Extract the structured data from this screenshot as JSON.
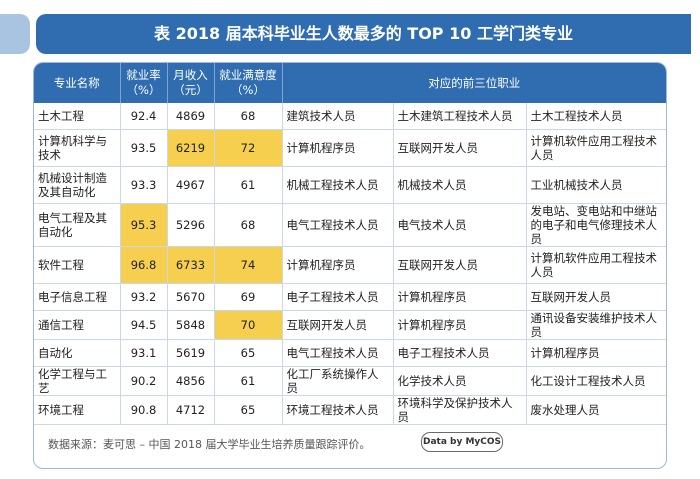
{
  "title": "表 2018 届本科毕业生人数最多的 TOP 10 工学门类专业",
  "headers": {
    "major": "专业名称",
    "employment_rate": [
      "就业率",
      "（%）"
    ],
    "monthly_income": [
      "月收入",
      "（元）"
    ],
    "satisfaction": [
      "就业满意度",
      "（%）"
    ],
    "top_jobs": "对应的前三位职业"
  },
  "rows": [
    {
      "major": "土木工程",
      "rate": "92.4",
      "income": "4869",
      "sat": "68",
      "jobs": [
        "建筑技术人员",
        "土木建筑工程技术人员",
        "土木工程技术人员"
      ]
    },
    {
      "major": "计算机科学与技术",
      "rate": "93.5",
      "income": "6219",
      "sat": "72",
      "jobs": [
        "计算机程序员",
        "互联网开发人员",
        "计算机软件应用工程技术人员"
      ]
    },
    {
      "major": "机械设计制造及其自动化",
      "rate": "93.3",
      "income": "4967",
      "sat": "61",
      "jobs": [
        "机械工程技术人员",
        "机械技术人员",
        "工业机械技术人员"
      ]
    },
    {
      "major": "电气工程及其自动化",
      "rate": "95.3",
      "income": "5296",
      "sat": "68",
      "jobs": [
        "电气工程技术人员",
        "电气技术人员",
        "发电站、变电站和中继站的电子和电气修理技术人员"
      ]
    },
    {
      "major": "软件工程",
      "rate": "96.8",
      "income": "6733",
      "sat": "74",
      "jobs": [
        "计算机程序员",
        "互联网开发人员",
        "计算机软件应用工程技术人员"
      ]
    },
    {
      "major": "电子信息工程",
      "rate": "93.2",
      "income": "5670",
      "sat": "69",
      "jobs": [
        "电子工程技术人员",
        "计算机程序员",
        "互联网开发人员"
      ]
    },
    {
      "major": "通信工程",
      "rate": "94.5",
      "income": "5848",
      "sat": "70",
      "jobs": [
        "互联网开发人员",
        "计算机程序员",
        "通讯设备安装维护技术人员"
      ]
    },
    {
      "major": "自动化",
      "rate": "93.1",
      "income": "5619",
      "sat": "65",
      "jobs": [
        "电气工程技术人员",
        "电子工程技术人员",
        "计算机程序员"
      ]
    },
    {
      "major": "化学工程与工艺",
      "rate": "90.2",
      "income": "4856",
      "sat": "61",
      "jobs": [
        "化工厂系统操作人员",
        "化学技术人员",
        "化工设计工程技术人员"
      ]
    },
    {
      "major": "环境工程",
      "rate": "90.8",
      "income": "4712",
      "sat": "65",
      "jobs": [
        "环境工程技术人员",
        "环境科学及保护技术人员",
        "废水处理人员"
      ]
    }
  ],
  "source": "数据来源：麦可思 – 中国 2018 届大学毕业生培养质量跟踪评价。",
  "logo_text": "Data by MyCOS",
  "highlight_color": "#f6cf4f",
  "header_color": "#2f6db0"
}
